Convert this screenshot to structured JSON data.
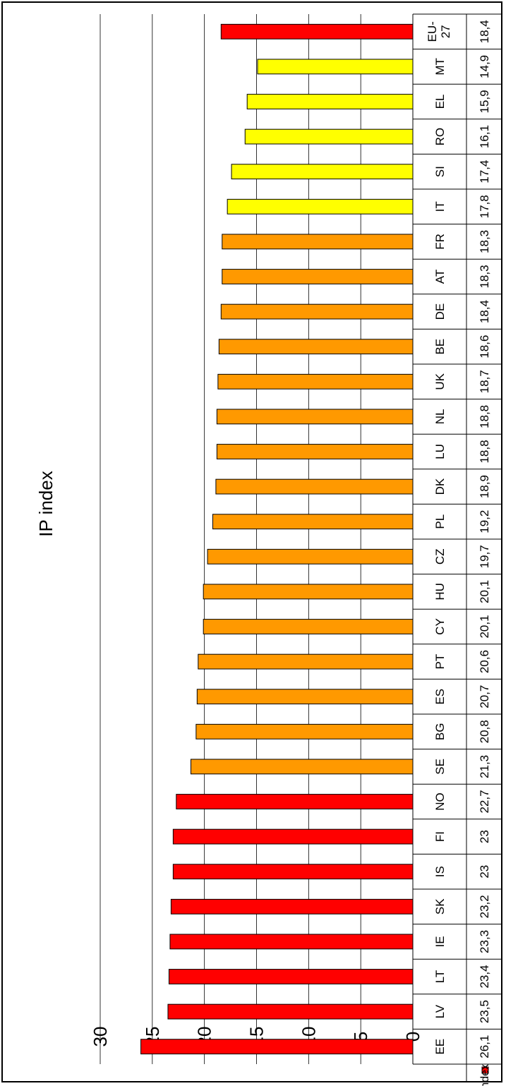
{
  "chart_data": {
    "type": "bar",
    "title": "IP index",
    "series_label": "IP index",
    "ylim": [
      0,
      30
    ],
    "yticks": [
      "0",
      "5",
      "10",
      "15",
      "20",
      "25",
      "30"
    ],
    "categories": [
      "EE",
      "LV",
      "LT",
      "IE",
      "SK",
      "IS",
      "FI",
      "NO",
      "SE",
      "BG",
      "ES",
      "PT",
      "CY",
      "HU",
      "CZ",
      "PL",
      "DK",
      "LU",
      "NL",
      "UK",
      "BE",
      "DE",
      "AT",
      "FR",
      "IT",
      "SI",
      "RO",
      "EL",
      "MT",
      "EU-27"
    ],
    "values": [
      26.1,
      23.5,
      23.4,
      23.3,
      23.2,
      23,
      23,
      22.7,
      21.3,
      20.8,
      20.7,
      20.6,
      20.1,
      20.1,
      19.7,
      19.2,
      18.9,
      18.8,
      18.8,
      18.7,
      18.6,
      18.4,
      18.3,
      18.3,
      17.8,
      17.4,
      16.1,
      15.9,
      14.9,
      18.4
    ],
    "value_labels": [
      "26,1",
      "23,5",
      "23,4",
      "23,3",
      "23,2",
      "23",
      "23",
      "22,7",
      "21,3",
      "20,8",
      "20,7",
      "20,6",
      "20,1",
      "20,1",
      "19,7",
      "19,2",
      "18,9",
      "18,8",
      "18,8",
      "18,7",
      "18,6",
      "18,4",
      "18,3",
      "18,3",
      "17,8",
      "17,4",
      "16,1",
      "15,9",
      "14,9",
      "18,4"
    ],
    "bar_colors": [
      "#ff0000",
      "#ff0000",
      "#ff0000",
      "#ff0000",
      "#ff0000",
      "#ff0000",
      "#ff0000",
      "#ff0000",
      "#ff9900",
      "#ff9900",
      "#ff9900",
      "#ff9900",
      "#ff9900",
      "#ff9900",
      "#ff9900",
      "#ff9900",
      "#ff9900",
      "#ff9900",
      "#ff9900",
      "#ff9900",
      "#ff9900",
      "#ff9900",
      "#ff9900",
      "#ff9900",
      "#ffff00",
      "#ffff00",
      "#ffff00",
      "#ffff00",
      "#ffff00",
      "#ff0000"
    ],
    "legend_color": "#ff0000",
    "grid": true
  }
}
